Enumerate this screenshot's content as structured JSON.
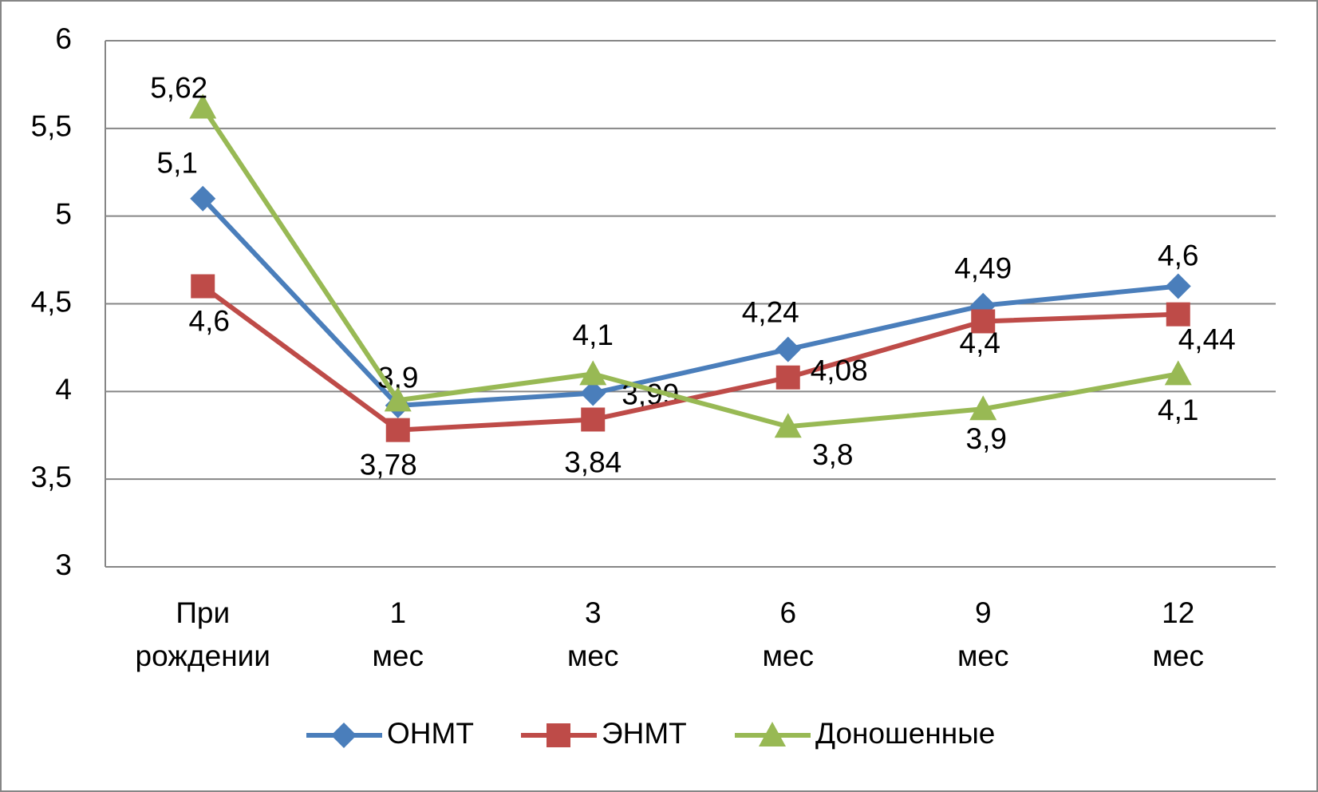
{
  "chart_data": {
    "type": "line",
    "categories": [
      "При рождении",
      "1 мес",
      "3 мес",
      "6 мес",
      "9 мес",
      "12 мес"
    ],
    "series": [
      {
        "name": "ОНМТ",
        "color": "#4a7ebb",
        "marker": "diamond",
        "values": [
          5.1,
          3.92,
          3.99,
          4.24,
          4.49,
          4.6
        ],
        "value_labels": [
          "5,1",
          "3,9",
          "3,99",
          "4,24",
          "4,49",
          "4,6"
        ]
      },
      {
        "name": "ЭНМТ",
        "color": "#be4b48",
        "marker": "square",
        "values": [
          4.6,
          3.78,
          3.84,
          4.08,
          4.4,
          4.44
        ],
        "value_labels": [
          "4,6",
          "3,78",
          "3,84",
          "4,08",
          "4,4",
          "4,44"
        ]
      },
      {
        "name": "Доношенные",
        "color": "#98b954",
        "marker": "triangle",
        "values": [
          5.62,
          3.95,
          4.1,
          3.8,
          3.9,
          4.1
        ],
        "value_labels": [
          "5,62",
          null,
          "4,1",
          "3,8",
          "3,9",
          "4,1"
        ]
      }
    ],
    "ylim": [
      3,
      6
    ],
    "yticks": [
      3,
      {
        "value": 3.5,
        "label": "3,5"
      },
      4,
      {
        "value": 4.5,
        "label": "4,5"
      },
      5,
      {
        "value": 5.5,
        "label": "5,5"
      },
      6
    ],
    "grid": true,
    "legend": "bottom"
  }
}
